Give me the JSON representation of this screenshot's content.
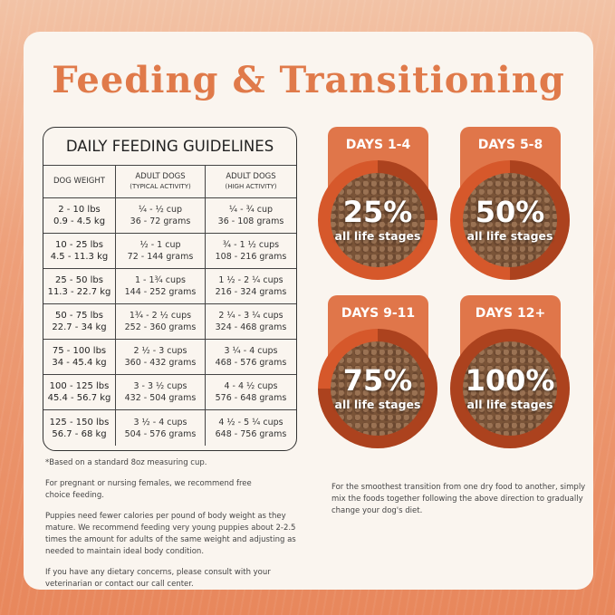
{
  "title": "Feeding & Transitioning",
  "table": {
    "title": "DAILY FEEDING GUIDELINES",
    "headers": [
      {
        "main": "DOG WEIGHT",
        "sub": ""
      },
      {
        "main": "ADULT DOGS",
        "sub": "(TYPICAL ACTIVITY)"
      },
      {
        "main": "ADULT DOGS",
        "sub": "(HIGH ACTIVITY)"
      }
    ],
    "rows": [
      {
        "lbs": "2 - 10 lbs",
        "kg": "0.9 - 4.5 kg",
        "t_cup": "¼ - ½ cup",
        "t_g": "36 - 72 grams",
        "h_cup": "¼ - ¾ cup",
        "h_g": "36 - 108 grams"
      },
      {
        "lbs": "10 - 25 lbs",
        "kg": "4.5 - 11.3 kg",
        "t_cup": "½ - 1 cup",
        "t_g": "72 - 144 grams",
        "h_cup": "¾ - 1 ½ cups",
        "h_g": "108 - 216 grams"
      },
      {
        "lbs": "25 - 50 lbs",
        "kg": "11.3 - 22.7 kg",
        "t_cup": "1 - 1¾ cups",
        "t_g": "144 - 252 grams",
        "h_cup": "1 ½ - 2 ¼ cups",
        "h_g": "216 - 324 grams"
      },
      {
        "lbs": "50 - 75 lbs",
        "kg": "22.7 - 34 kg",
        "t_cup": "1¾ - 2 ½ cups",
        "t_g": "252 - 360 grams",
        "h_cup": "2 ¼ - 3 ¼ cups",
        "h_g": "324 - 468 grams"
      },
      {
        "lbs": "75 - 100 lbs",
        "kg": "34 - 45.4 kg",
        "t_cup": "2 ½ - 3 cups",
        "t_g": "360 - 432 grams",
        "h_cup": "3 ¼ - 4 cups",
        "h_g": "468 - 576 grams"
      },
      {
        "lbs": "100 - 125 lbs",
        "kg": "45.4 - 56.7 kg",
        "t_cup": "3 - 3 ½ cups",
        "t_g": "432 - 504 grams",
        "h_cup": "4 - 4 ½ cups",
        "h_g": "576 - 648 grams"
      },
      {
        "lbs": "125 - 150 lbs",
        "kg": "56.7 - 68 kg",
        "t_cup": "3 ½ - 4 cups",
        "t_g": "504 - 576 grams",
        "h_cup": "4 ½ - 5 ¼ cups",
        "h_g": "648 - 756 grams"
      }
    ]
  },
  "notes": [
    "*Based on a standard 8oz measuring cup.",
    "For pregnant or nursing females, we recommend free choice feeding.",
    "Puppies need fewer calories per pound of body weight as they mature. We recommend feeding very young puppies about 2-2.5 times the amount for adults of the same weight and adjusting as needed to maintain ideal body condition.",
    "If you have any dietary concerns, please consult with your veterinarian or contact our call center."
  ],
  "transition_note": "For the smoothest transition from one dry food to another, simply mix the foods together following the above direction to gradually change your dog's diet.",
  "stages": [
    {
      "days": "DAYS 1-4",
      "percent": "25%",
      "percent_value": 25,
      "label": "all life stages"
    },
    {
      "days": "DAYS 5-8",
      "percent": "50%",
      "percent_value": 50,
      "label": "all life stages"
    },
    {
      "days": "DAYS 9-11",
      "percent": "75%",
      "percent_value": 75,
      "label": "all life stages"
    },
    {
      "days": "DAYS 12+",
      "percent": "100%",
      "percent_value": 100,
      "label": "all life stages"
    }
  ],
  "colors": {
    "accent": "#e07a4a",
    "card": "#faf5ef",
    "bowl": "#d6582b",
    "kibble": "#7a5438"
  }
}
